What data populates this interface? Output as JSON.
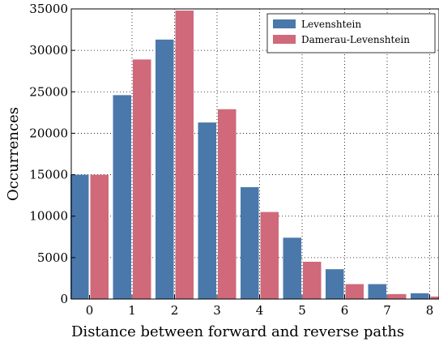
{
  "chart_data": {
    "type": "bar",
    "xlabel": "Distance between forward and reverse paths",
    "ylabel": "Occurrences",
    "categories": [
      "0",
      "1",
      "2",
      "3",
      "4",
      "5",
      "6",
      "7",
      "8"
    ],
    "series": [
      {
        "name": "Levenshtein",
        "color": "#4a78ab",
        "values": [
          15000,
          24600,
          31300,
          21300,
          13500,
          7400,
          3600,
          1800,
          700
        ]
      },
      {
        "name": "Damerau-Levenshtein",
        "color": "#d0697a",
        "values": [
          15000,
          28900,
          34800,
          22900,
          10500,
          4500,
          1800,
          600,
          300
        ]
      }
    ],
    "ylim": [
      0,
      35000
    ],
    "yticks": [
      "0",
      "5000",
      "10000",
      "15000",
      "20000",
      "25000",
      "30000",
      "35000"
    ],
    "grid": true,
    "legend_position": "top-right"
  }
}
